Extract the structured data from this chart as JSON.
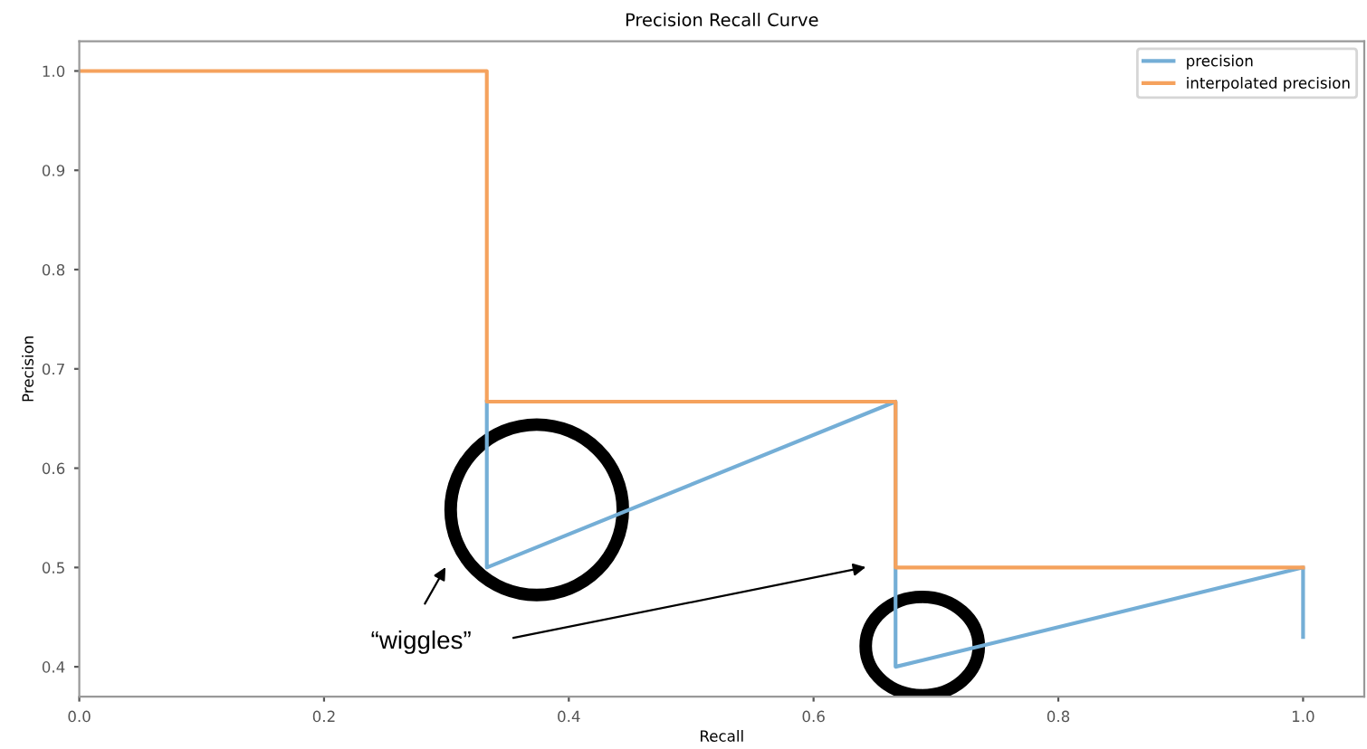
{
  "chart_data": {
    "type": "line",
    "title": "Precision Recall Curve",
    "xlabel": "Recall",
    "ylabel": "Precision",
    "xlim": [
      0,
      1.05
    ],
    "ylim": [
      0.37,
      1.03
    ],
    "xticks": [
      {
        "value": 0,
        "label": "0.0"
      },
      0.2,
      0.4,
      0.6,
      0.8,
      {
        "value": 1,
        "label": "1.0"
      }
    ],
    "yticks": [
      0.4,
      0.5,
      0.6,
      0.7,
      0.8,
      0.9,
      {
        "value": 1,
        "label": "1.0"
      }
    ],
    "grid": false,
    "legend": "top right",
    "annotations": [
      "“wiggles”"
    ],
    "series": [
      {
        "name": "precision",
        "color": "#74aed6",
        "x": [
          0.333,
          0.333,
          0.667,
          0.667,
          1.0,
          1.0
        ],
        "values": [
          0.667,
          0.5,
          0.667,
          0.4,
          0.5,
          0.43
        ]
      },
      {
        "name": "interpolated precision",
        "color": "#f5a25d",
        "x": [
          0,
          0.333,
          0.333,
          0.667,
          0.667,
          1.0
        ],
        "values": [
          1.0,
          1.0,
          0.667,
          0.667,
          0.5,
          0.5
        ]
      }
    ]
  }
}
